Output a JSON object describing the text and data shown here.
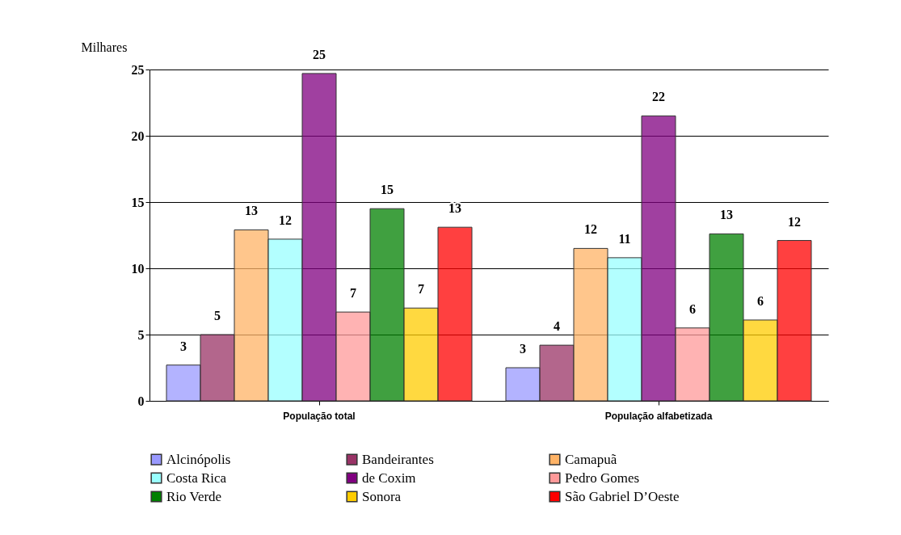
{
  "chart_data": {
    "type": "bar",
    "ylabel": "Milhares",
    "categories": [
      "População total",
      "População alfabetizada"
    ],
    "ylim": [
      0,
      25
    ],
    "yticks": [
      0,
      5,
      10,
      15,
      20,
      25
    ],
    "grid": "y",
    "legend": "bottom",
    "series": [
      {
        "name": "Alcinópolis",
        "color": "#9999ff",
        "values": [
          2.7,
          2.5
        ],
        "value_labels": [
          "3",
          "3"
        ]
      },
      {
        "name": "Bandeirantes",
        "color": "#993366",
        "values": [
          5.0,
          4.2
        ],
        "value_labels": [
          "5",
          "4"
        ]
      },
      {
        "name": "Camapuã",
        "color": "#ffb366",
        "values": [
          12.9,
          11.5
        ],
        "value_labels": [
          "13",
          "12"
        ]
      },
      {
        "name": "Costa Rica",
        "color": "#99ffff",
        "values": [
          12.2,
          10.8
        ],
        "value_labels": [
          "12",
          "11"
        ]
      },
      {
        "name": "de Coxim",
        "color": "#800080",
        "values": [
          24.7,
          21.5
        ],
        "value_labels": [
          "25",
          "22"
        ]
      },
      {
        "name": "Pedro Gomes",
        "color": "#ff9999",
        "values": [
          6.7,
          5.5
        ],
        "value_labels": [
          "7",
          "6"
        ]
      },
      {
        "name": "Rio Verde",
        "color": "#008000",
        "values": [
          14.5,
          12.6
        ],
        "value_labels": [
          "15",
          "13"
        ]
      },
      {
        "name": "Sonora",
        "color": "#ffcc00",
        "values": [
          7.0,
          6.1
        ],
        "value_labels": [
          "7",
          "6"
        ]
      },
      {
        "name": "São Gabriel D’Oeste",
        "color": "#ff0000",
        "values": [
          13.1,
          12.1
        ],
        "value_labels": [
          "13",
          "12"
        ]
      }
    ]
  }
}
